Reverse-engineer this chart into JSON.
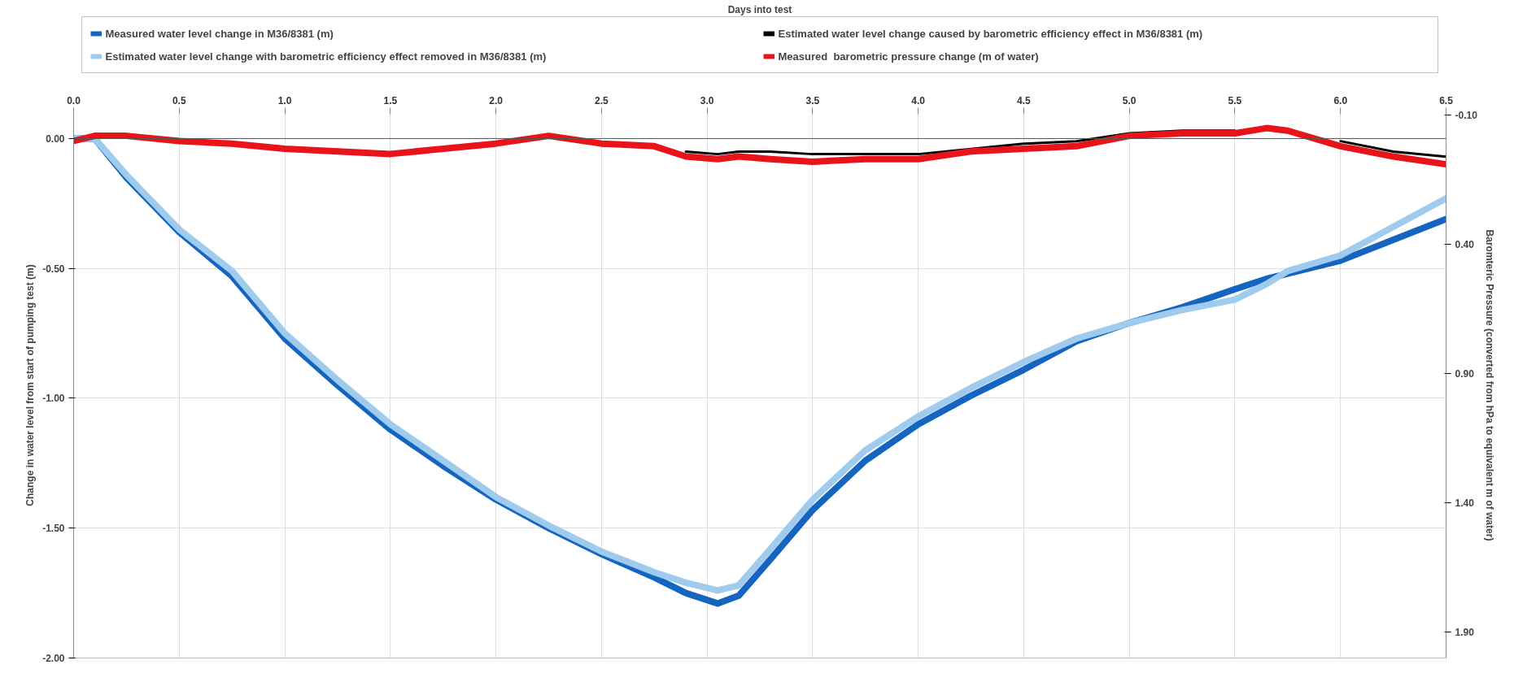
{
  "chart_data": {
    "type": "line",
    "annotations": [
      "Days into test"
    ],
    "ylabel": "Change in water level from start of pumping test (m)",
    "y2label": "Baromteric Pressure (converted from hPa to equivalent m of water)",
    "xlim": [
      0,
      6.5
    ],
    "xticks": [
      {
        "value": 0,
        "label": "0.0"
      },
      0.5,
      {
        "value": 1,
        "label": "1.0"
      },
      1.5,
      {
        "value": 2,
        "label": "2.0"
      },
      2.5,
      {
        "value": 3,
        "label": "3.0"
      },
      3.5,
      {
        "value": 4,
        "label": "4.0"
      },
      4.5,
      {
        "value": 5,
        "label": "5.0"
      },
      5.5,
      {
        "value": 6,
        "label": "6.0"
      },
      6.5
    ],
    "ylim": [
      -2.0,
      0.1
    ],
    "yticks": [
      {
        "value": -2,
        "label": "-2.00"
      },
      {
        "value": -1.5,
        "label": "-1.50"
      },
      {
        "value": -1,
        "label": "-1.00"
      },
      {
        "value": -0.5,
        "label": "-0.50"
      },
      {
        "value": 0,
        "label": "0.00"
      }
    ],
    "y2lim": [
      2.0,
      -0.11
    ],
    "y2ticks": [
      {
        "value": -0.1,
        "label": "-0.10"
      },
      {
        "value": 0.4,
        "label": "0.40"
      },
      {
        "value": 0.9,
        "label": "0.90"
      },
      {
        "value": 1.4,
        "label": "1.40"
      },
      {
        "value": 1.9,
        "label": "1.90"
      }
    ],
    "grid": true,
    "legend": "top",
    "line_style": "solid",
    "x": [
      0,
      0.1,
      0.25,
      0.5,
      0.75,
      1.0,
      1.25,
      1.5,
      1.75,
      2.0,
      2.25,
      2.5,
      2.75,
      2.9,
      3.05,
      3.15,
      3.3,
      3.5,
      3.75,
      4.0,
      4.25,
      4.5,
      4.75,
      5.0,
      5.25,
      5.5,
      5.65,
      5.75,
      6.0,
      6.25,
      6.5
    ],
    "series": [
      {
        "name": "Measured water level change in M36/8381 (m)",
        "color": "#1565c0",
        "values": [
          0,
          0,
          -0.15,
          -0.36,
          -0.53,
          -0.77,
          -0.95,
          -1.12,
          -1.26,
          -1.39,
          -1.5,
          -1.6,
          -1.69,
          -1.75,
          -1.79,
          -1.76,
          -1.62,
          -1.43,
          -1.24,
          -1.1,
          -0.99,
          -0.89,
          -0.78,
          -0.71,
          -0.65,
          -0.58,
          -0.54,
          -0.52,
          -0.47,
          -0.39,
          -0.31
        ]
      },
      {
        "name": "Estimated water level change with barometric efficiency effect removed in M36/8381 (m)",
        "color": "#9ecbee",
        "values": [
          0,
          0,
          -0.14,
          -0.35,
          -0.51,
          -0.75,
          -0.93,
          -1.1,
          -1.24,
          -1.38,
          -1.49,
          -1.59,
          -1.67,
          -1.71,
          -1.74,
          -1.72,
          -1.58,
          -1.39,
          -1.2,
          -1.07,
          -0.96,
          -0.86,
          -0.77,
          -0.71,
          -0.66,
          -0.62,
          -0.56,
          -0.51,
          -0.45,
          -0.34,
          -0.23
        ]
      },
      {
        "name": "Estimated water level change caused by barometric efficiency effect in M36/8381 (m)",
        "color": "#000000",
        "values": [
          null,
          null,
          null,
          null,
          null,
          null,
          null,
          null,
          null,
          null,
          null,
          null,
          null,
          -0.05,
          -0.06,
          -0.05,
          -0.05,
          -0.06,
          -0.06,
          -0.06,
          -0.04,
          -0.02,
          -0.01,
          0.02,
          0.03,
          0.03,
          null,
          null,
          -0.01,
          -0.05,
          -0.07
        ]
      },
      {
        "name": "Measured  barometric pressure change (m of water)",
        "color": "#e8141a",
        "axis": "y2",
        "values": [
          0,
          -0.02,
          -0.02,
          0,
          0.01,
          0.03,
          0.04,
          0.05,
          0.03,
          0.01,
          -0.02,
          0.01,
          0.02,
          0.06,
          0.07,
          0.06,
          0.07,
          0.08,
          0.07,
          0.07,
          0.04,
          0.03,
          0.02,
          -0.02,
          -0.03,
          -0.03,
          -0.05,
          -0.04,
          0.02,
          0.06,
          0.09
        ]
      }
    ]
  }
}
